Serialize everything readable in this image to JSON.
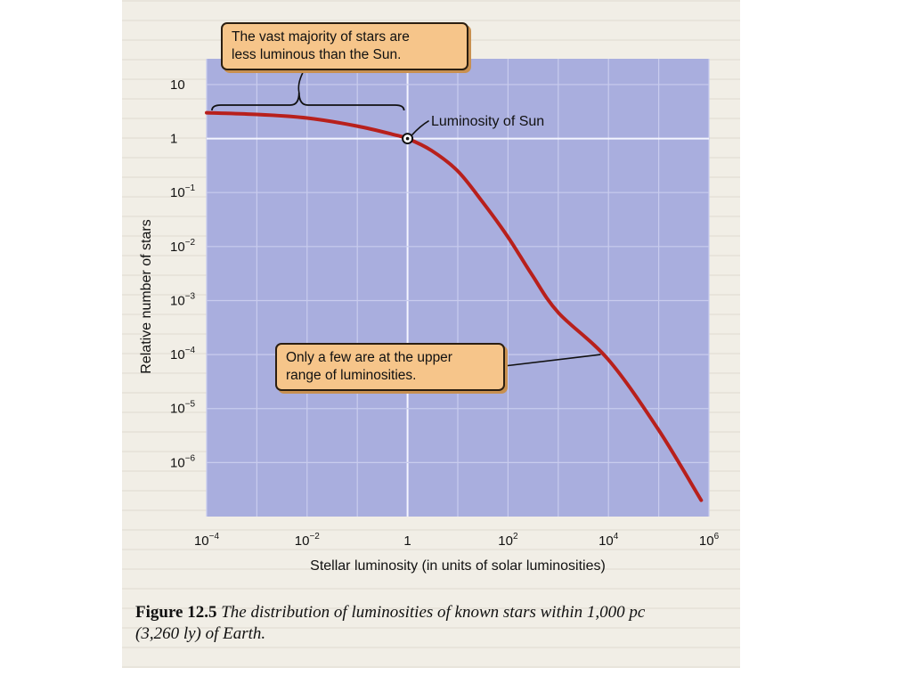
{
  "chart_data": {
    "type": "line",
    "title": "",
    "xlabel": "Stellar luminosity (in units of solar luminosities)",
    "ylabel": "Relative number of stars",
    "x_scale": "log",
    "y_scale": "log",
    "xlim": [
      0.0001,
      1000000
    ],
    "ylim": [
      1e-07,
      30
    ],
    "grid": true,
    "x_ticks": [
      {
        "value": 0.0001,
        "base": "10",
        "exp": "−4"
      },
      {
        "value": 0.01,
        "base": "10",
        "exp": "−2"
      },
      {
        "value": 1,
        "base": "1",
        "exp": ""
      },
      {
        "value": 100,
        "base": "10",
        "exp": "2"
      },
      {
        "value": 10000,
        "base": "10",
        "exp": "4"
      },
      {
        "value": 1000000,
        "base": "10",
        "exp": "6"
      }
    ],
    "y_ticks": [
      {
        "value": 10,
        "base": "10",
        "exp": ""
      },
      {
        "value": 1,
        "base": "1",
        "exp": ""
      },
      {
        "value": 0.1,
        "base": "10",
        "exp": "−1"
      },
      {
        "value": 0.01,
        "base": "10",
        "exp": "−2"
      },
      {
        "value": 0.001,
        "base": "10",
        "exp": "−3"
      },
      {
        "value": 0.0001,
        "base": "10",
        "exp": "−4"
      },
      {
        "value": 1e-05,
        "base": "10",
        "exp": "−5"
      },
      {
        "value": 1e-06,
        "base": "10",
        "exp": "−6"
      }
    ],
    "series": [
      {
        "color": "#b8201c",
        "x": [
          0.0001,
          0.001,
          0.01,
          0.1,
          0.5,
          1,
          3,
          10,
          30,
          100,
          300,
          1000,
          10000,
          100000,
          700000
        ],
        "y": [
          3.0,
          2.8,
          2.4,
          1.7,
          1.2,
          1.0,
          0.6,
          0.25,
          0.07,
          0.015,
          0.003,
          0.0006,
          8e-05,
          4e-06,
          2e-07
        ]
      }
    ],
    "annotations": {
      "sun_point": {
        "x": 1,
        "y": 1,
        "label": "Luminosity of Sun"
      },
      "majority_box": {
        "lines": [
          "The vast majority of stars are",
          "less luminous than the Sun."
        ],
        "bracket_range": [
          0.0001,
          1
        ]
      },
      "upper_box": {
        "lines": [
          "Only a few are at the upper",
          "range of luminosities."
        ],
        "pointer_x": 7000,
        "pointer_y": 0.0001
      }
    }
  },
  "caption": {
    "number": "Figure 12.5",
    "text": "The distribution of luminosities of known stars within 1,000 pc (3,260 ly) of Earth."
  },
  "colors": {
    "plot_background": "#a9aede",
    "grid": "#c9ccee",
    "curve": "#b8201c",
    "callout_fill": "#f6c58a",
    "page": "#f1eee6"
  }
}
